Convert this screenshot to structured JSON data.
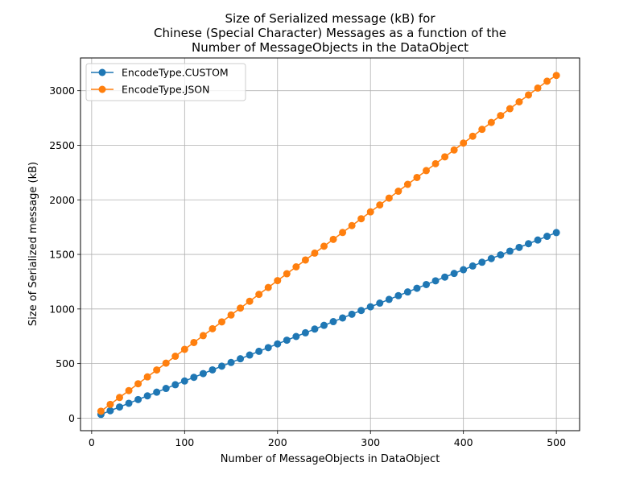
{
  "chart_data": {
    "type": "line",
    "title_lines": [
      "Size of Serialized message (kB) for",
      "Chinese (Special Character) Messages as a function of the",
      "Number of MessageObjects in the DataObject"
    ],
    "xlabel": "Number of MessageObjects in DataObject",
    "ylabel": "Size of Serialized message (kB)",
    "xlim": [
      -12,
      525
    ],
    "ylim": [
      -115,
      3300
    ],
    "xticks": [
      0,
      100,
      200,
      300,
      400,
      500
    ],
    "yticks": [
      0,
      500,
      1000,
      1500,
      2000,
      2500,
      3000
    ],
    "grid": true,
    "legend_position": "top-left",
    "x": [
      10,
      20,
      30,
      40,
      50,
      60,
      70,
      80,
      90,
      100,
      110,
      120,
      130,
      140,
      150,
      160,
      170,
      180,
      190,
      200,
      210,
      220,
      230,
      240,
      250,
      260,
      270,
      280,
      290,
      300,
      310,
      320,
      330,
      340,
      350,
      360,
      370,
      380,
      390,
      400,
      410,
      420,
      430,
      440,
      450,
      460,
      470,
      480,
      490,
      500
    ],
    "series": [
      {
        "name": "EncodeType.CUSTOM",
        "color": "#1f77b4",
        "values": [
          34,
          68,
          102,
          136,
          170,
          204,
          238,
          272,
          306,
          340,
          374,
          408,
          442,
          476,
          510,
          544,
          578,
          612,
          646,
          680,
          714,
          748,
          782,
          816,
          850,
          884,
          918,
          952,
          986,
          1020,
          1054,
          1088,
          1122,
          1156,
          1190,
          1224,
          1258,
          1292,
          1326,
          1360,
          1394,
          1428,
          1462,
          1496,
          1530,
          1564,
          1598,
          1632,
          1666,
          1700
        ]
      },
      {
        "name": "EncodeType.JSON",
        "color": "#ff7f0e",
        "values": [
          63,
          126,
          189,
          252,
          315,
          378,
          441,
          504,
          567,
          630,
          693,
          756,
          819,
          882,
          945,
          1008,
          1071,
          1134,
          1197,
          1260,
          1323,
          1386,
          1449,
          1512,
          1575,
          1638,
          1701,
          1764,
          1827,
          1890,
          1953,
          2016,
          2079,
          2142,
          2205,
          2268,
          2331,
          2394,
          2457,
          2520,
          2583,
          2646,
          2709,
          2772,
          2835,
          2898,
          2961,
          3024,
          3087,
          3140
        ]
      }
    ]
  }
}
